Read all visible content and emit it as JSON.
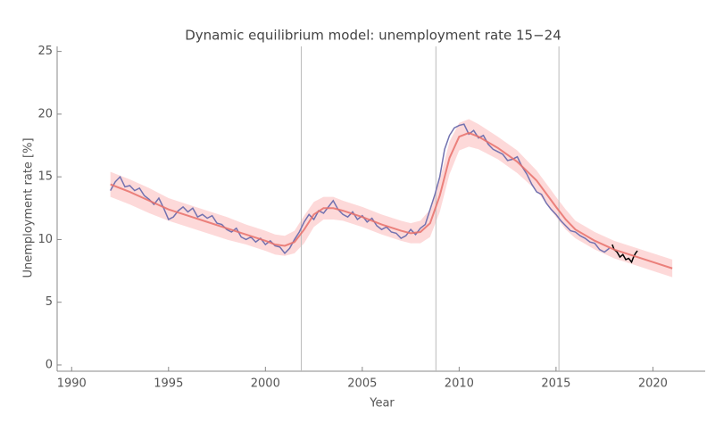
{
  "chart_data": {
    "type": "line",
    "title": "Dynamic equilibrium model: unemployment rate 15−24",
    "xlabel": "Year",
    "ylabel": "Unemployment rate [%]",
    "xlim": [
      1989.25,
      2022.7
    ],
    "ylim": [
      -0.5,
      25.4
    ],
    "xticks": [
      1990,
      1995,
      2000,
      2005,
      2010,
      2015,
      2020
    ],
    "yticks": [
      0,
      5,
      10,
      15,
      20,
      25
    ],
    "vlines": [
      2001.85,
      2008.8,
      2015.15
    ],
    "vline_color": "#bbbbbb",
    "band": {
      "color": "#fdd0d0",
      "x": [
        1992,
        1993,
        1994,
        1995,
        1996,
        1997,
        1998,
        1999,
        2000,
        2000.5,
        2001,
        2001.5,
        2002,
        2002.5,
        2003,
        2003.5,
        2004,
        2005,
        2006,
        2007,
        2007.5,
        2008,
        2008.5,
        2009,
        2009.5,
        2010,
        2010.5,
        2011,
        2012,
        2013,
        2014,
        2015,
        2015.5,
        2016,
        2017,
        2018,
        2019,
        2020,
        2021
      ],
      "upper": [
        15.4,
        14.8,
        14.1,
        13.3,
        12.8,
        12.3,
        11.8,
        11.2,
        10.7,
        10.4,
        10.3,
        10.7,
        11.9,
        13.0,
        13.4,
        13.4,
        13.1,
        12.6,
        12.0,
        11.5,
        11.3,
        11.5,
        12.4,
        14.8,
        17.8,
        19.3,
        19.6,
        19.2,
        18.2,
        17.1,
        15.5,
        13.4,
        12.4,
        11.5,
        10.6,
        9.9,
        9.4,
        8.9,
        8.4
      ],
      "lower": [
        13.4,
        12.8,
        12.1,
        11.5,
        11.0,
        10.5,
        10.0,
        9.6,
        9.1,
        8.8,
        8.7,
        8.9,
        9.7,
        11.0,
        11.6,
        11.6,
        11.5,
        11.0,
        10.4,
        9.9,
        9.7,
        9.7,
        10.2,
        12.2,
        15.2,
        17.1,
        17.4,
        17.2,
        16.4,
        15.3,
        13.9,
        11.8,
        10.8,
        10.1,
        9.2,
        8.5,
        8.0,
        7.5,
        7.0
      ]
    },
    "model": {
      "color": "#e8706a",
      "x": [
        1992,
        1993,
        1994,
        1995,
        1996,
        1997,
        1998,
        1999,
        2000,
        2000.5,
        2001,
        2001.5,
        2002,
        2002.5,
        2003,
        2003.5,
        2004,
        2005,
        2006,
        2007,
        2007.5,
        2008,
        2008.5,
        2009,
        2009.5,
        2010,
        2010.5,
        2011,
        2012,
        2013,
        2014,
        2015,
        2015.5,
        2016,
        2017,
        2018,
        2019,
        2020,
        2021
      ],
      "values": [
        14.4,
        13.8,
        13.1,
        12.4,
        11.9,
        11.4,
        10.9,
        10.4,
        9.9,
        9.6,
        9.5,
        9.8,
        10.8,
        12.0,
        12.5,
        12.5,
        12.3,
        11.8,
        11.2,
        10.7,
        10.5,
        10.6,
        11.3,
        13.5,
        16.5,
        18.2,
        18.5,
        18.2,
        17.3,
        16.2,
        14.7,
        12.6,
        11.6,
        10.8,
        9.9,
        9.2,
        8.7,
        8.2,
        7.7
      ]
    },
    "series": [
      {
        "color": "#7272b0",
        "x": [
          1992,
          1992.25,
          1992.5,
          1992.75,
          1993,
          1993.25,
          1993.5,
          1993.75,
          1994,
          1994.25,
          1994.5,
          1994.75,
          1995,
          1995.25,
          1995.5,
          1995.75,
          1996,
          1996.25,
          1996.5,
          1996.75,
          1997,
          1997.25,
          1997.5,
          1997.75,
          1998,
          1998.25,
          1998.5,
          1998.75,
          1999,
          1999.25,
          1999.5,
          1999.75,
          2000,
          2000.25,
          2000.5,
          2000.75,
          2001,
          2001.25,
          2001.5,
          2001.75,
          2002,
          2002.25,
          2002.5,
          2002.75,
          2003,
          2003.25,
          2003.5,
          2003.75,
          2004,
          2004.25,
          2004.5,
          2004.75,
          2005,
          2005.25,
          2005.5,
          2005.75,
          2006,
          2006.25,
          2006.5,
          2006.75,
          2007,
          2007.25,
          2007.5,
          2007.75,
          2008,
          2008.25,
          2008.5,
          2008.75,
          2009,
          2009.25,
          2009.5,
          2009.75,
          2010,
          2010.25,
          2010.5,
          2010.75,
          2011,
          2011.25,
          2011.5,
          2011.75,
          2012,
          2012.25,
          2012.5,
          2012.75,
          2013,
          2013.25,
          2013.5,
          2013.75,
          2014,
          2014.25,
          2014.5,
          2014.75,
          2015,
          2015.25,
          2015.5,
          2015.75,
          2016,
          2016.25,
          2016.5,
          2016.75,
          2017,
          2017.25,
          2017.5,
          2017.75
        ],
        "values": [
          13.9,
          14.6,
          15.0,
          14.2,
          14.3,
          13.9,
          14.1,
          13.5,
          13.2,
          12.8,
          13.3,
          12.5,
          11.6,
          11.8,
          12.3,
          12.6,
          12.2,
          12.5,
          11.8,
          12.0,
          11.7,
          11.9,
          11.3,
          11.2,
          10.8,
          10.6,
          10.9,
          10.2,
          10.0,
          10.2,
          9.8,
          10.1,
          9.6,
          9.9,
          9.5,
          9.4,
          8.9,
          9.3,
          10.0,
          10.6,
          11.4,
          12.0,
          11.6,
          12.3,
          12.1,
          12.6,
          13.1,
          12.4,
          12.0,
          11.8,
          12.2,
          11.6,
          11.9,
          11.4,
          11.7,
          11.1,
          10.8,
          11.0,
          10.6,
          10.5,
          10.1,
          10.3,
          10.8,
          10.4,
          10.9,
          11.2,
          12.4,
          13.6,
          15.0,
          17.2,
          18.3,
          18.9,
          19.1,
          19.2,
          18.4,
          18.7,
          18.1,
          18.3,
          17.6,
          17.2,
          17.0,
          16.8,
          16.3,
          16.4,
          16.6,
          15.8,
          15.2,
          14.4,
          13.8,
          13.6,
          12.9,
          12.4,
          12.0,
          11.5,
          11.1,
          10.7,
          10.6,
          10.3,
          10.1,
          9.8,
          9.7,
          9.2,
          9.0,
          9.3
        ]
      },
      {
        "color": "#000000",
        "x": [
          2017.9,
          2018.0,
          2018.15,
          2018.3,
          2018.45,
          2018.6,
          2018.75,
          2018.9,
          2019.0,
          2019.1,
          2019.2
        ],
        "values": [
          9.6,
          9.2,
          9.0,
          8.6,
          8.8,
          8.4,
          8.5,
          8.2,
          8.6,
          8.9,
          9.1
        ]
      }
    ]
  }
}
